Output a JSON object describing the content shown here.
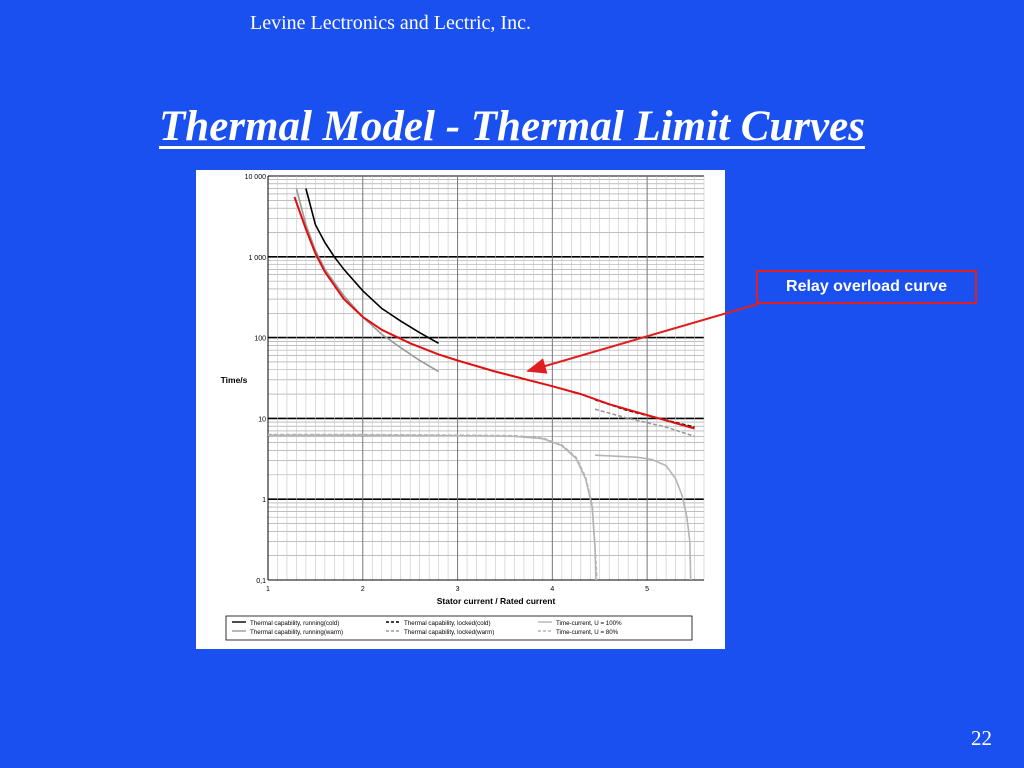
{
  "slide": {
    "header": "Levine Lectronics and Lectric, Inc.",
    "title": "Thermal Model - Thermal Limit Curves",
    "page_number": "22",
    "callout": "Relay overload curve",
    "background_color": "#1a50f0",
    "callout_border_color": "#e02020"
  },
  "chart_data": {
    "type": "line",
    "xlabel": "Stator current / Rated current",
    "ylabel": "Time/s",
    "xlim": [
      1,
      5.6
    ],
    "ylim": [
      0.1,
      10000
    ],
    "yscale": "log",
    "x_ticks": [
      "1",
      "2",
      "3",
      "4",
      "5"
    ],
    "y_ticks": [
      "0,1",
      "1",
      "10",
      "100",
      "1 000",
      "10 000"
    ],
    "grid": true,
    "legend_position": "bottom",
    "series": [
      {
        "name": "Thermal capability, running(cold)",
        "color": "#000000",
        "style": "solid",
        "points": [
          [
            1.4,
            7000
          ],
          [
            1.5,
            2500
          ],
          [
            1.6,
            1500
          ],
          [
            1.7,
            1000
          ],
          [
            1.8,
            700
          ],
          [
            2.0,
            380
          ],
          [
            2.2,
            230
          ],
          [
            2.4,
            160
          ],
          [
            2.6,
            115
          ],
          [
            2.8,
            85
          ]
        ]
      },
      {
        "name": "Thermal capability, running(warm)",
        "color": "#9a9a9a",
        "style": "solid",
        "points": [
          [
            1.3,
            7000
          ],
          [
            1.4,
            2500
          ],
          [
            1.5,
            1200
          ],
          [
            1.6,
            700
          ],
          [
            1.8,
            330
          ],
          [
            2.0,
            180
          ],
          [
            2.2,
            110
          ],
          [
            2.4,
            75
          ],
          [
            2.6,
            52
          ],
          [
            2.8,
            38
          ]
        ]
      },
      {
        "name": "Thermal capability, locked(cold)",
        "color": "#000000",
        "style": "dashed",
        "points": [
          [
            4.45,
            17
          ],
          [
            4.8,
            12.5
          ],
          [
            5.2,
            9.5
          ],
          [
            5.5,
            7.8
          ]
        ]
      },
      {
        "name": "Thermal capability, locked(warm)",
        "color": "#9a9a9a",
        "style": "dashed",
        "points": [
          [
            4.45,
            13
          ],
          [
            4.8,
            10
          ],
          [
            5.2,
            7.8
          ],
          [
            5.5,
            6
          ]
        ]
      },
      {
        "name": "Time-current, U = 100%",
        "color": "#b4b4b4",
        "style": "solid",
        "points": [
          [
            1.0,
            6.2
          ],
          [
            2.0,
            6.2
          ],
          [
            3.0,
            6.1
          ],
          [
            3.6,
            6.0
          ],
          [
            3.9,
            5.6
          ],
          [
            4.1,
            4.6
          ],
          [
            4.25,
            3.2
          ],
          [
            4.35,
            1.8
          ],
          [
            4.42,
            0.8
          ],
          [
            4.45,
            0.25
          ],
          [
            4.46,
            0.1
          ]
        ]
      },
      {
        "name": "Time-current, U = 80%",
        "color": "#b4b4b4",
        "style": "dashed",
        "points": [
          [
            1.0,
            6.3
          ],
          [
            2.0,
            6.3
          ],
          [
            3.0,
            6.2
          ],
          [
            3.6,
            6.1
          ],
          [
            3.9,
            5.7
          ],
          [
            4.1,
            4.7
          ],
          [
            4.25,
            3.3
          ],
          [
            4.35,
            1.9
          ],
          [
            4.42,
            0.85
          ],
          [
            4.45,
            0.26
          ],
          [
            4.47,
            0.1
          ]
        ]
      },
      {
        "color": "#e01010",
        "style": "solid",
        "width": 2,
        "points": [
          [
            1.28,
            5500
          ],
          [
            1.4,
            2200
          ],
          [
            1.5,
            1100
          ],
          [
            1.6,
            650
          ],
          [
            1.8,
            300
          ],
          [
            2.0,
            180
          ],
          [
            2.2,
            125
          ],
          [
            2.5,
            85
          ],
          [
            2.8,
            62
          ],
          [
            3.0,
            52
          ],
          [
            3.4,
            38
          ],
          [
            4.0,
            25
          ],
          [
            4.3,
            20
          ],
          [
            4.6,
            15
          ],
          [
            5.0,
            11
          ],
          [
            5.5,
            7.5
          ]
        ]
      }
    ],
    "overlay_curve": {
      "color": "#b4b4b4",
      "points": [
        [
          4.45,
          3.5
        ],
        [
          4.9,
          3.3
        ],
        [
          5.05,
          3.1
        ],
        [
          5.2,
          2.6
        ],
        [
          5.3,
          1.8
        ],
        [
          5.37,
          1.1
        ],
        [
          5.42,
          0.6
        ],
        [
          5.45,
          0.3
        ],
        [
          5.46,
          0.1
        ]
      ]
    }
  }
}
